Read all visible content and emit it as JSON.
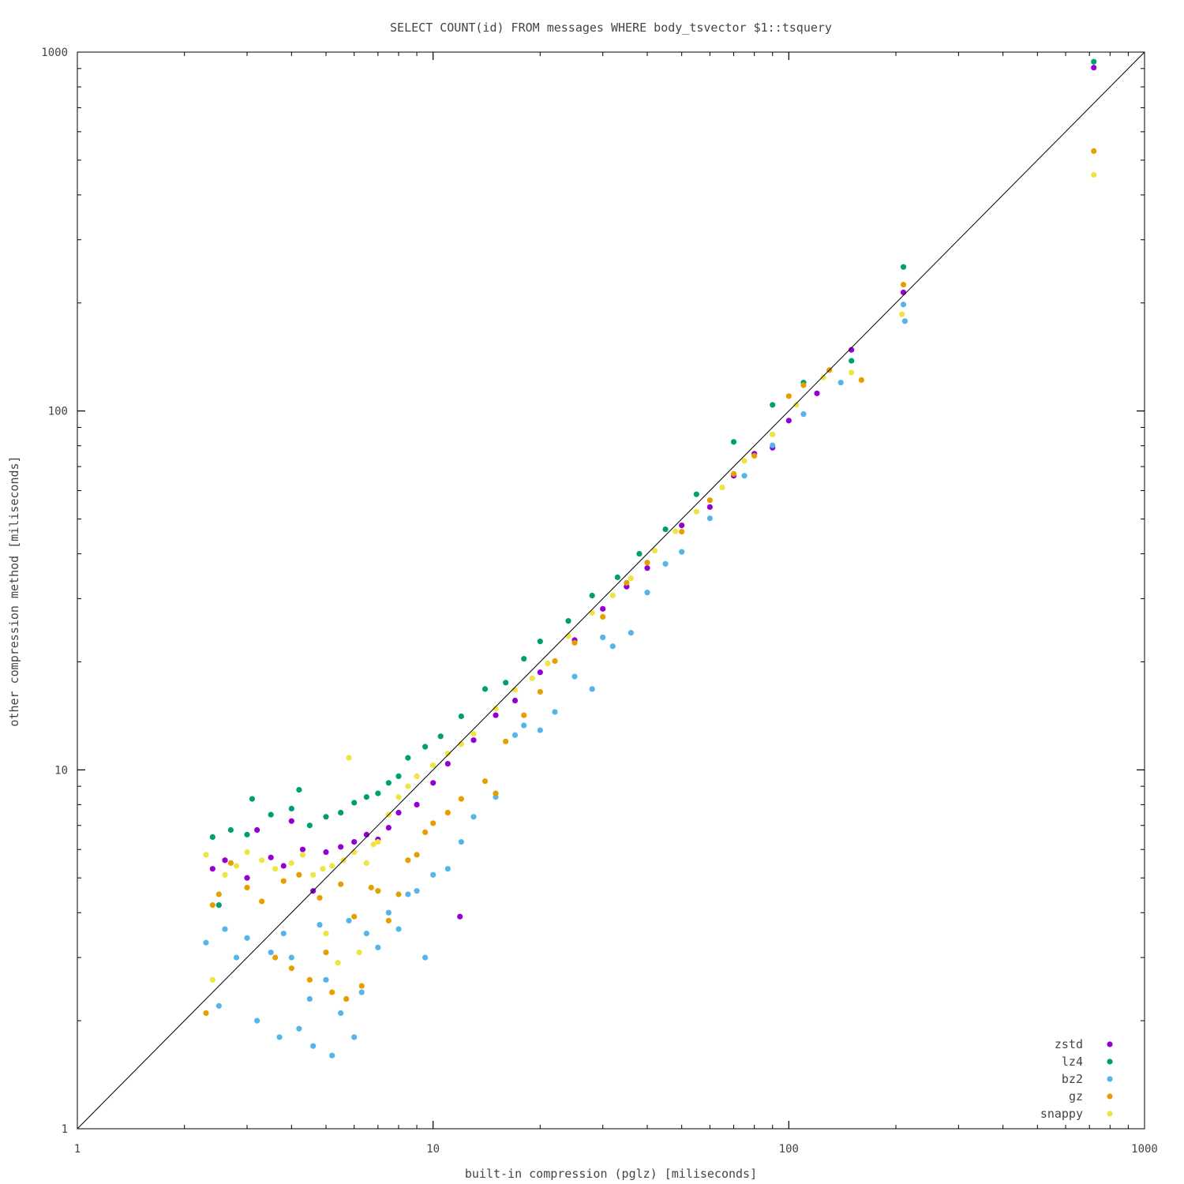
{
  "chart_data": {
    "type": "scatter",
    "title": "SELECT COUNT(id) FROM messages WHERE body_tsvector $1::tsquery",
    "xlabel": "built-in compression (pglz) [miliseconds]",
    "ylabel": "other compression method [miliseconds]",
    "xscale": "log",
    "yscale": "log",
    "xlim": [
      1,
      1000
    ],
    "ylim": [
      1,
      1000
    ],
    "x_ticks": [
      "1",
      "10",
      "100",
      "1000"
    ],
    "y_ticks": [
      "1",
      "10",
      "100",
      "1000"
    ],
    "reference_line": "y = x",
    "grid": false,
    "legend_position": "bottom-right",
    "series": [
      {
        "name": "zstd",
        "color": "#9400d3",
        "points": [
          [
            2.4,
            5.3
          ],
          [
            2.6,
            5.6
          ],
          [
            3.0,
            5.0
          ],
          [
            3.2,
            6.8
          ],
          [
            3.5,
            5.7
          ],
          [
            3.8,
            5.4
          ],
          [
            4.0,
            7.2
          ],
          [
            4.3,
            6.0
          ],
          [
            4.6,
            4.6
          ],
          [
            5.0,
            5.9
          ],
          [
            5.5,
            6.1
          ],
          [
            6.0,
            6.3
          ],
          [
            6.5,
            6.6
          ],
          [
            7.0,
            6.4
          ],
          [
            7.5,
            6.9
          ],
          [
            8.0,
            7.6
          ],
          [
            9.0,
            8.0
          ],
          [
            10.0,
            9.2
          ],
          [
            11.0,
            10.4
          ],
          [
            11.9,
            3.9
          ],
          [
            13.0,
            12.1
          ],
          [
            15.0,
            14.2
          ],
          [
            17.0,
            15.6
          ],
          [
            20.0,
            18.7
          ],
          [
            25.0,
            23.0
          ],
          [
            30.0,
            28.1
          ],
          [
            35.0,
            32.4
          ],
          [
            40.0,
            36.5
          ],
          [
            50.0,
            48.0
          ],
          [
            60.0,
            54.0
          ],
          [
            70.0,
            66.0
          ],
          [
            80.0,
            76.0
          ],
          [
            90.0,
            79.0
          ],
          [
            100.0,
            94.0
          ],
          [
            120.0,
            112.0
          ],
          [
            150.0,
            148.0
          ],
          [
            210.0,
            214.0
          ],
          [
            720.0,
            905.0
          ]
        ]
      },
      {
        "name": "lz4",
        "color": "#009e73",
        "points": [
          [
            2.4,
            6.5
          ],
          [
            2.5,
            4.2
          ],
          [
            2.7,
            6.8
          ],
          [
            3.0,
            6.6
          ],
          [
            3.1,
            8.3
          ],
          [
            3.5,
            7.5
          ],
          [
            4.0,
            7.8
          ],
          [
            4.2,
            8.8
          ],
          [
            4.5,
            7.0
          ],
          [
            5.0,
            7.4
          ],
          [
            5.5,
            7.6
          ],
          [
            6.0,
            8.1
          ],
          [
            6.5,
            8.4
          ],
          [
            7.0,
            8.6
          ],
          [
            7.5,
            9.2
          ],
          [
            8.0,
            9.6
          ],
          [
            8.5,
            10.8
          ],
          [
            9.5,
            11.6
          ],
          [
            10.5,
            12.4
          ],
          [
            12.0,
            14.1
          ],
          [
            14.0,
            16.8
          ],
          [
            16.0,
            17.5
          ],
          [
            18.0,
            20.4
          ],
          [
            20.0,
            22.8
          ],
          [
            24.0,
            26.0
          ],
          [
            28.0,
            30.6
          ],
          [
            33.0,
            34.4
          ],
          [
            38.0,
            40.0
          ],
          [
            45.0,
            46.8
          ],
          [
            55.0,
            58.6
          ],
          [
            70.0,
            82.0
          ],
          [
            90.0,
            104.0
          ],
          [
            110.0,
            120.0
          ],
          [
            150.0,
            138.0
          ],
          [
            210.0,
            252.0
          ],
          [
            720.0,
            940.0
          ]
        ]
      },
      {
        "name": "bz2",
        "color": "#56b4e9",
        "points": [
          [
            2.3,
            3.3
          ],
          [
            2.5,
            2.2
          ],
          [
            2.6,
            3.6
          ],
          [
            2.8,
            3.0
          ],
          [
            3.0,
            3.4
          ],
          [
            3.2,
            2.0
          ],
          [
            3.5,
            3.1
          ],
          [
            3.7,
            1.8
          ],
          [
            3.8,
            3.5
          ],
          [
            4.0,
            3.0
          ],
          [
            4.2,
            1.9
          ],
          [
            4.5,
            2.3
          ],
          [
            4.6,
            1.7
          ],
          [
            4.8,
            3.7
          ],
          [
            5.0,
            2.6
          ],
          [
            5.2,
            1.6
          ],
          [
            5.5,
            2.1
          ],
          [
            5.8,
            3.8
          ],
          [
            6.0,
            1.8
          ],
          [
            6.3,
            2.4
          ],
          [
            6.5,
            3.5
          ],
          [
            7.0,
            3.2
          ],
          [
            7.5,
            4.0
          ],
          [
            8.0,
            3.6
          ],
          [
            8.5,
            4.5
          ],
          [
            9.0,
            4.6
          ],
          [
            9.5,
            3.0
          ],
          [
            10.0,
            5.1
          ],
          [
            11.0,
            5.3
          ],
          [
            12.0,
            6.3
          ],
          [
            13.0,
            7.4
          ],
          [
            15.0,
            8.4
          ],
          [
            17.0,
            12.5
          ],
          [
            18.0,
            13.3
          ],
          [
            20.0,
            12.9
          ],
          [
            22.0,
            14.5
          ],
          [
            25.0,
            18.2
          ],
          [
            28.0,
            16.8
          ],
          [
            30.0,
            23.4
          ],
          [
            32.0,
            22.1
          ],
          [
            36.0,
            24.1
          ],
          [
            40.0,
            31.2
          ],
          [
            45.0,
            37.5
          ],
          [
            50.0,
            40.5
          ],
          [
            60.0,
            50.2
          ],
          [
            75.0,
            66.0
          ],
          [
            90.0,
            80.2
          ],
          [
            110.0,
            98.0
          ],
          [
            140.0,
            120.0
          ],
          [
            210.0,
            198.0
          ],
          [
            212.0,
            178.0
          ]
        ]
      },
      {
        "name": "gz",
        "color": "#e69f00",
        "points": [
          [
            2.3,
            2.1
          ],
          [
            2.4,
            4.2
          ],
          [
            2.5,
            4.5
          ],
          [
            2.7,
            5.5
          ],
          [
            3.0,
            4.7
          ],
          [
            3.3,
            4.3
          ],
          [
            3.6,
            3.0
          ],
          [
            3.8,
            4.9
          ],
          [
            4.0,
            2.8
          ],
          [
            4.2,
            5.1
          ],
          [
            4.5,
            2.6
          ],
          [
            4.8,
            4.4
          ],
          [
            5.0,
            3.1
          ],
          [
            5.2,
            2.4
          ],
          [
            5.5,
            4.8
          ],
          [
            5.7,
            2.3
          ],
          [
            6.0,
            3.9
          ],
          [
            6.3,
            2.5
          ],
          [
            6.7,
            4.7
          ],
          [
            7.0,
            4.6
          ],
          [
            7.5,
            3.8
          ],
          [
            8.0,
            4.5
          ],
          [
            8.5,
            5.6
          ],
          [
            9.0,
            5.8
          ],
          [
            9.5,
            6.7
          ],
          [
            10.0,
            7.1
          ],
          [
            11.0,
            7.6
          ],
          [
            12.0,
            8.3
          ],
          [
            14.0,
            9.3
          ],
          [
            15.0,
            8.6
          ],
          [
            16.0,
            12.0
          ],
          [
            18.0,
            14.2
          ],
          [
            20.0,
            16.5
          ],
          [
            22.0,
            20.1
          ],
          [
            25.0,
            22.6
          ],
          [
            30.0,
            26.7
          ],
          [
            35.0,
            33.2
          ],
          [
            40.0,
            37.8
          ],
          [
            50.0,
            46.1
          ],
          [
            60.0,
            56.4
          ],
          [
            70.0,
            66.8
          ],
          [
            80.0,
            75.0
          ],
          [
            100.0,
            110.0
          ],
          [
            110.0,
            118.0
          ],
          [
            130.0,
            130.0
          ],
          [
            160.0,
            122.0
          ],
          [
            210.0,
            225.0
          ],
          [
            720.0,
            530.0
          ]
        ]
      },
      {
        "name": "snappy",
        "color": "#f0e442",
        "points": [
          [
            2.3,
            5.8
          ],
          [
            2.4,
            2.6
          ],
          [
            2.6,
            5.1
          ],
          [
            2.8,
            5.4
          ],
          [
            3.0,
            5.9
          ],
          [
            3.3,
            5.6
          ],
          [
            3.6,
            5.3
          ],
          [
            4.0,
            5.5
          ],
          [
            4.3,
            5.8
          ],
          [
            4.6,
            5.1
          ],
          [
            4.9,
            5.3
          ],
          [
            5.0,
            3.5
          ],
          [
            5.2,
            5.4
          ],
          [
            5.4,
            2.9
          ],
          [
            5.6,
            5.6
          ],
          [
            5.8,
            10.8
          ],
          [
            6.0,
            5.9
          ],
          [
            6.2,
            3.1
          ],
          [
            6.5,
            5.5
          ],
          [
            6.8,
            6.2
          ],
          [
            7.0,
            6.3
          ],
          [
            7.5,
            7.5
          ],
          [
            8.0,
            8.4
          ],
          [
            8.5,
            9.0
          ],
          [
            9.0,
            9.6
          ],
          [
            10.0,
            10.3
          ],
          [
            11.0,
            11.1
          ],
          [
            12.0,
            11.8
          ],
          [
            13.0,
            12.6
          ],
          [
            15.0,
            14.8
          ],
          [
            17.0,
            16.7
          ],
          [
            19.0,
            18.0
          ],
          [
            21.0,
            19.8
          ],
          [
            24.0,
            23.6
          ],
          [
            28.0,
            27.4
          ],
          [
            32.0,
            30.6
          ],
          [
            36.0,
            34.2
          ],
          [
            42.0,
            40.8
          ],
          [
            48.0,
            46.2
          ],
          [
            55.0,
            52.4
          ],
          [
            65.0,
            61.2
          ],
          [
            75.0,
            72.6
          ],
          [
            90.0,
            86.0
          ],
          [
            105.0,
            104.0
          ],
          [
            125.0,
            124.0
          ],
          [
            150.0,
            128.0
          ],
          [
            208.0,
            186.0
          ],
          [
            720.0,
            455.0
          ]
        ]
      }
    ]
  }
}
